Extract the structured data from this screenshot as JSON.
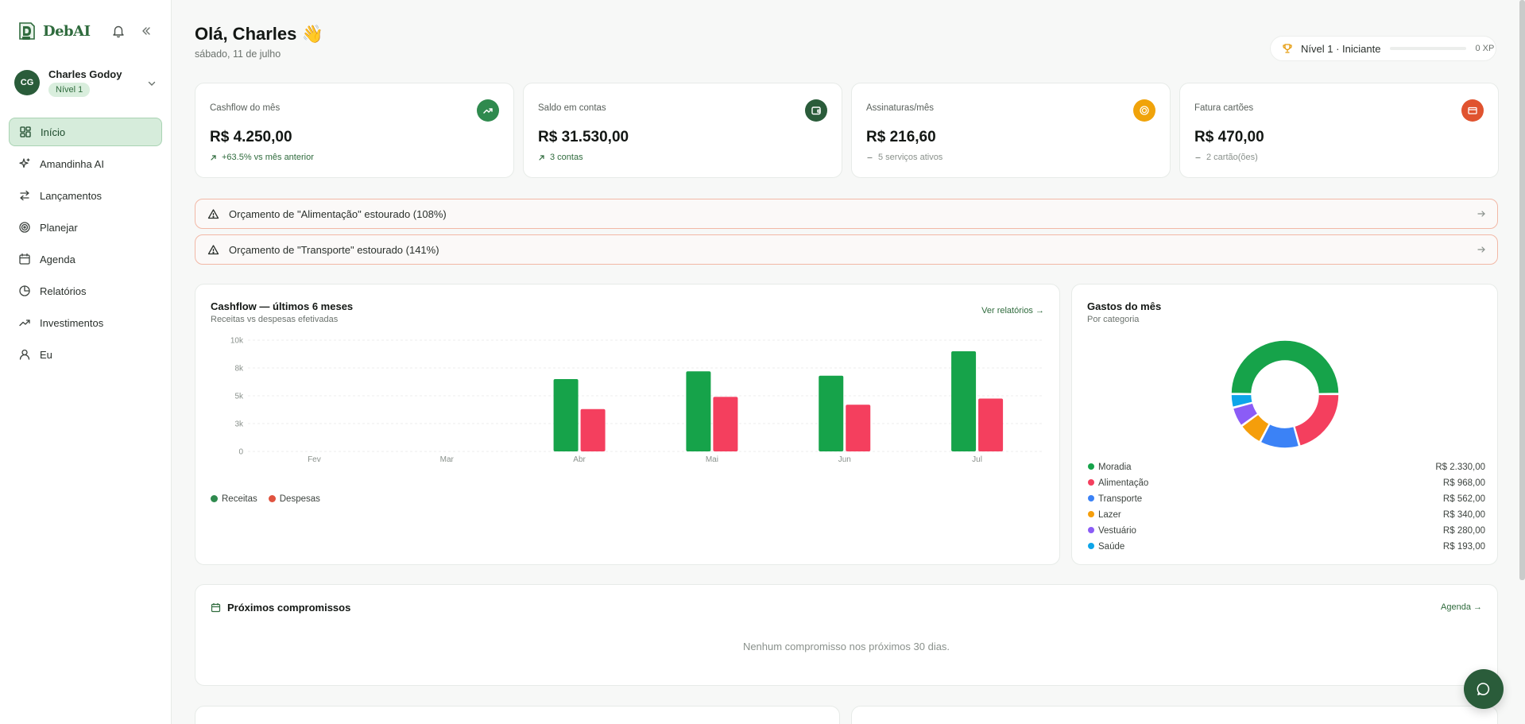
{
  "brand": {
    "name": "DebAI"
  },
  "user": {
    "initials": "CG",
    "name": "Charles Godoy",
    "level": "Nível 1"
  },
  "nav": [
    {
      "label": "Início",
      "icon": "dashboard-icon",
      "active": true
    },
    {
      "label": "Amandinha AI",
      "icon": "sparkles-icon"
    },
    {
      "label": "Lançamentos",
      "icon": "transfer-arrows-icon"
    },
    {
      "label": "Planejar",
      "icon": "target-icon"
    },
    {
      "label": "Agenda",
      "icon": "calendar-icon"
    },
    {
      "label": "Relatórios",
      "icon": "pie-chart-icon"
    },
    {
      "label": "Investimentos",
      "icon": "trending-up-icon"
    },
    {
      "label": "Eu",
      "icon": "user-icon"
    }
  ],
  "header": {
    "greeting": "Olá, Charles 👋",
    "date": "sábado, 11 de julho"
  },
  "level": {
    "text": "Nível 1 · Iniciante",
    "xp": "0 XP",
    "progress": 0
  },
  "kpis": [
    {
      "label": "Cashflow do mês",
      "value": "R$ 4.250,00",
      "sub": "+63.5% vs mês anterior",
      "sub_type": "pos",
      "icon": "trending-up-icon",
      "icon_color": "#2f8a4e"
    },
    {
      "label": "Saldo em contas",
      "value": "R$ 31.530,00",
      "sub": "3 contas",
      "sub_type": "pos",
      "icon": "wallet-icon",
      "icon_color": "#2a5c3a"
    },
    {
      "label": "Assinaturas/mês",
      "value": "R$ 216,60",
      "sub": "5 serviços ativos",
      "sub_type": "neutral",
      "icon": "subscription-icon",
      "icon_color": "#f0a30a"
    },
    {
      "label": "Fatura cartões",
      "value": "R$ 470,00",
      "sub": "2 cartão(ões)",
      "sub_type": "neutral",
      "icon": "credit-card-icon",
      "icon_color": "#e0532f"
    }
  ],
  "alerts": [
    "Orçamento de \"Alimentação\" estourado (108%)",
    "Orçamento de \"Transporte\" estourado (141%)"
  ],
  "cashflow_card": {
    "title": "Cashflow — últimos 6 meses",
    "subtitle": "Receitas vs despesas efetivadas",
    "link": "Ver relatórios →"
  },
  "spend_card": {
    "title": "Gastos do mês",
    "subtitle": "Por categoria"
  },
  "agenda_card": {
    "title": "Próximos compromissos",
    "link": "Agenda →",
    "empty": "Nenhum compromisso nos próximos 30 dias."
  },
  "chart_data": [
    {
      "type": "bar",
      "categories": [
        "Fev",
        "Mar",
        "Abr",
        "Mai",
        "Jun",
        "Jul"
      ],
      "series": [
        {
          "name": "Receitas",
          "values": [
            0,
            0,
            6500,
            7200,
            6800,
            9000
          ],
          "color": "#16a34a"
        },
        {
          "name": "Despesas",
          "values": [
            0,
            0,
            3800,
            4900,
            4200,
            4750
          ],
          "color": "#f43f5e"
        }
      ],
      "yticks": [
        "0",
        "3k",
        "5k",
        "8k",
        "10k"
      ],
      "ytick_values": [
        0,
        2500,
        5000,
        7500,
        10000
      ],
      "ylim": [
        0,
        10000
      ],
      "legend_colors": [
        "#2f8a4e",
        "#e0533f"
      ],
      "grid": true
    },
    {
      "type": "pie",
      "categories": [
        "Moradia",
        "Alimentação",
        "Transporte",
        "Lazer",
        "Vestuário",
        "Saúde"
      ],
      "values": [
        2330,
        968,
        562,
        340,
        280,
        193
      ],
      "labels": [
        "R$ 2.330,00",
        "R$ 968,00",
        "R$ 562,00",
        "R$ 340,00",
        "R$ 280,00",
        "R$ 193,00"
      ],
      "colors": [
        "#16a34a",
        "#f43f5e",
        "#3b82f6",
        "#f59e0b",
        "#8b5cf6",
        "#0ea5e9"
      ],
      "donut": true
    }
  ]
}
